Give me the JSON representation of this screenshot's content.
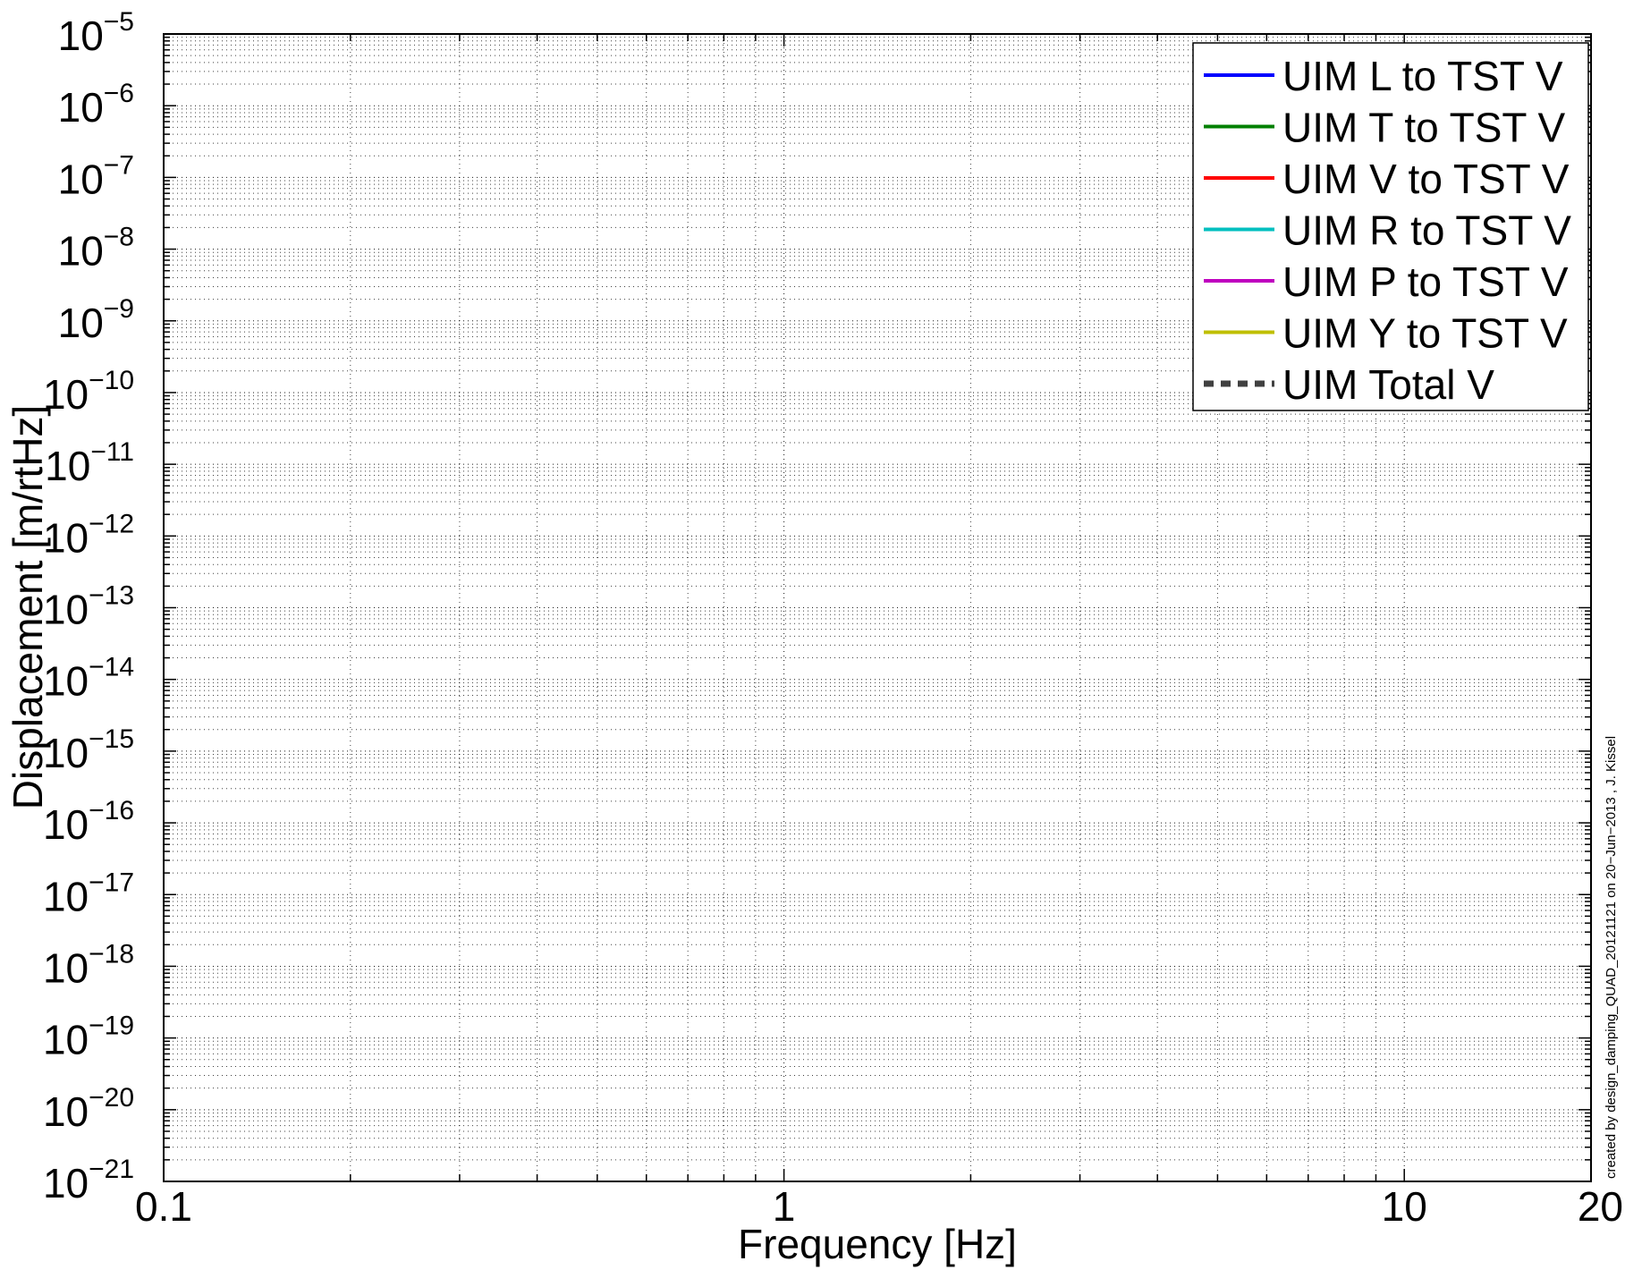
{
  "chart_data": {
    "type": "line",
    "title": "",
    "xlabel": "Frequency [Hz]",
    "ylabel": "Displacement [m/rtHz]",
    "x_scale": "log",
    "y_scale": "log",
    "xlim": [
      0.1,
      20
    ],
    "ylim": [
      1e-21,
      1e-05
    ],
    "grid": true,
    "x_ticks": [
      {
        "value": 0.1,
        "label": "0.1"
      },
      {
        "value": 1,
        "label": "1"
      },
      {
        "value": 10,
        "label": "10"
      },
      {
        "value": 20,
        "label": "20"
      }
    ],
    "y_ticks": [
      {
        "exp": -21,
        "base": "10",
        "sup": "−21"
      },
      {
        "exp": -20,
        "base": "10",
        "sup": "−20"
      },
      {
        "exp": -19,
        "base": "10",
        "sup": "−19"
      },
      {
        "exp": -18,
        "base": "10",
        "sup": "−18"
      },
      {
        "exp": -17,
        "base": "10",
        "sup": "−17"
      },
      {
        "exp": -16,
        "base": "10",
        "sup": "−16"
      },
      {
        "exp": -15,
        "base": "10",
        "sup": "−15"
      },
      {
        "exp": -14,
        "base": "10",
        "sup": "−14"
      },
      {
        "exp": -13,
        "base": "10",
        "sup": "−13"
      },
      {
        "exp": -12,
        "base": "10",
        "sup": "−12"
      },
      {
        "exp": -11,
        "base": "10",
        "sup": "−11"
      },
      {
        "exp": -10,
        "base": "10",
        "sup": "−10"
      },
      {
        "exp": -9,
        "base": "10",
        "sup": "−9"
      },
      {
        "exp": -8,
        "base": "10",
        "sup": "−8"
      },
      {
        "exp": -7,
        "base": "10",
        "sup": "−7"
      },
      {
        "exp": -6,
        "base": "10",
        "sup": "−6"
      },
      {
        "exp": -5,
        "base": "10",
        "sup": "−5"
      }
    ],
    "legend_position": "top-right",
    "series": [
      {
        "name": "UIM L to TST V",
        "color": "#0000ff",
        "style": "solid",
        "x": [],
        "y": []
      },
      {
        "name": "UIM T to TST V",
        "color": "#008000",
        "style": "solid",
        "x": [],
        "y": []
      },
      {
        "name": "UIM V to TST V",
        "color": "#ff0000",
        "style": "solid",
        "x": [],
        "y": []
      },
      {
        "name": "UIM R to TST V",
        "color": "#00bfbf",
        "style": "solid",
        "x": [],
        "y": []
      },
      {
        "name": "UIM P to TST V",
        "color": "#bf00bf",
        "style": "solid",
        "x": [],
        "y": []
      },
      {
        "name": "UIM Y to TST V",
        "color": "#bfbf00",
        "style": "solid",
        "x": [],
        "y": []
      },
      {
        "name": "UIM Total V",
        "color": "#404040",
        "style": "dashed",
        "x": [],
        "y": []
      }
    ],
    "annotation": "created by design_damping_QUAD_20121121 on 20−Jun−2013 , J. Kissel"
  }
}
